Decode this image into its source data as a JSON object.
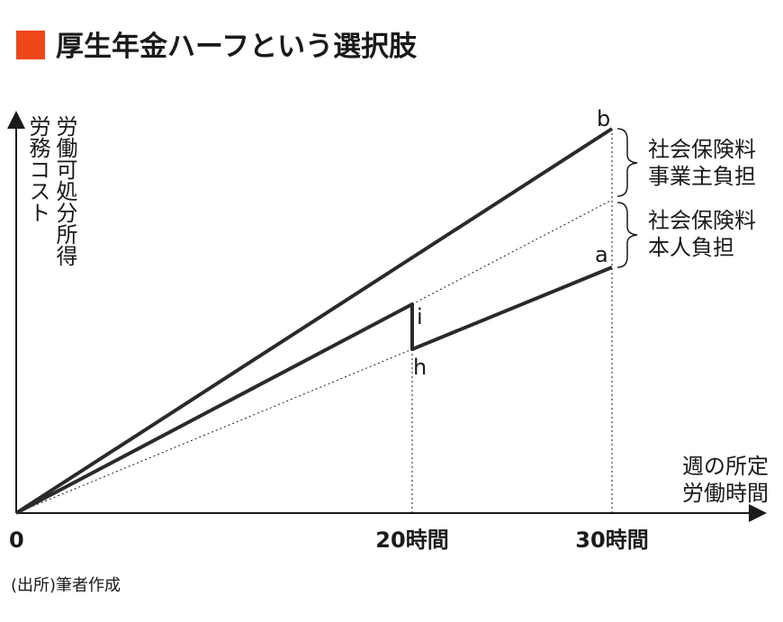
{
  "header": {
    "title": "厚生年金ハーフという選択肢"
  },
  "y_axis_label": [
    "労働可処分所得",
    "労務コスト"
  ],
  "x_axis_label": [
    "週の所定",
    "労働時間"
  ],
  "x_ticks": [
    "0",
    "20時間",
    "30時間"
  ],
  "points": {
    "a": "a",
    "b": "b",
    "h": "h",
    "i": "i"
  },
  "brackets": [
    {
      "lines": [
        "社会保険料",
        "事業主負担"
      ]
    },
    {
      "lines": [
        "社会保険料",
        "本人負担"
      ]
    }
  ],
  "source": "(出所)筆者作成"
}
